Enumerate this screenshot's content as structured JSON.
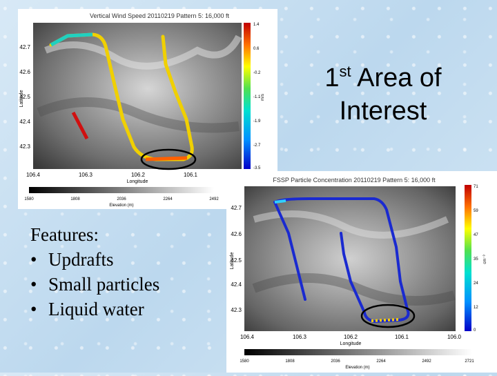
{
  "slide": {
    "title_main": "1",
    "title_sup": "st",
    "title_rest": " Area of",
    "title_line2": "Interest",
    "features_heading": "Features:",
    "features": [
      "Updrafts",
      "Small particles",
      "Liquid water"
    ]
  },
  "chart_data": [
    {
      "type": "map",
      "title": "Vertical Wind Speed 20110219 Pattern 5: 16,000 ft",
      "xlabel": "Longitude",
      "ylabel": "Latitude",
      "xticks": [
        "106.4",
        "106.3",
        "106.2",
        "106.1"
      ],
      "yticks": [
        "42.7",
        "42.6",
        "42.5",
        "42.4",
        "42.3"
      ],
      "colorbar_ticks": [
        "1.4",
        "0.6",
        "-0.2",
        "-1.1",
        "-1.9",
        "-2.7",
        "-3.5"
      ],
      "colorbar_unit": "m/s",
      "elevation_ticks": [
        "1580",
        "1808",
        "2036",
        "2264",
        "2492"
      ],
      "elevation_label": "Elevation (m)",
      "accent_colors": {
        "track_low": "#1030ff",
        "track_mid": "#ffe000",
        "track_high": "#d01010",
        "circle": "#000000"
      }
    },
    {
      "type": "map",
      "title": "FSSP Particle Concentration 20110219 Pattern 5: 16,000 ft",
      "xlabel": "Longitude",
      "ylabel": "Latitude",
      "xticks": [
        "106.4",
        "106.3",
        "106.2",
        "106.1",
        "106.0"
      ],
      "yticks": [
        "42.7",
        "42.6",
        "42.5",
        "42.4",
        "42.3"
      ],
      "colorbar_ticks": [
        "71",
        "59",
        "47",
        "35",
        "24",
        "12",
        "0"
      ],
      "colorbar_unit": "cm⁻³",
      "elevation_ticks": [
        "1580",
        "1808",
        "2036",
        "2264",
        "2492",
        "2721"
      ],
      "elevation_label": "Elevation (m)",
      "accent_colors": {
        "track_low": "#1020c0",
        "track_mid": "#ffe000",
        "track_high": "#d01010",
        "circle": "#000000"
      }
    }
  ]
}
